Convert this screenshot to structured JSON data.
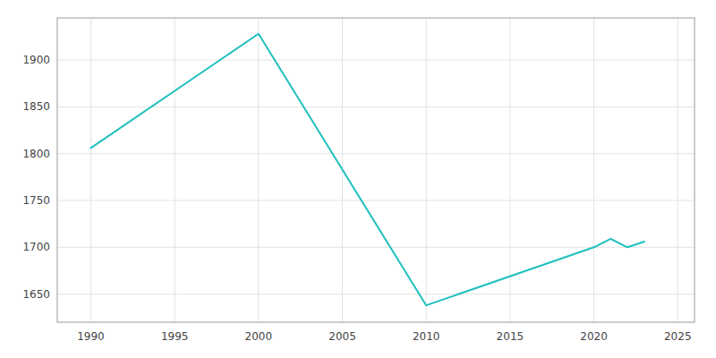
{
  "chart_data": {
    "type": "line",
    "x": [
      1990,
      2000,
      2010,
      2020,
      2021,
      2022,
      2023
    ],
    "values": [
      1806,
      1928,
      1638,
      1700,
      1709,
      1700,
      1706
    ],
    "color": "#20BFBF",
    "xlim": [
      1988,
      2026
    ],
    "ylim": [
      1620,
      1945
    ],
    "xticks": [
      1990,
      1995,
      2000,
      2005,
      2010,
      2015,
      2020,
      2025
    ],
    "yticks": [
      1650,
      1700,
      1750,
      1800,
      1850,
      1900
    ],
    "grid": true
  }
}
